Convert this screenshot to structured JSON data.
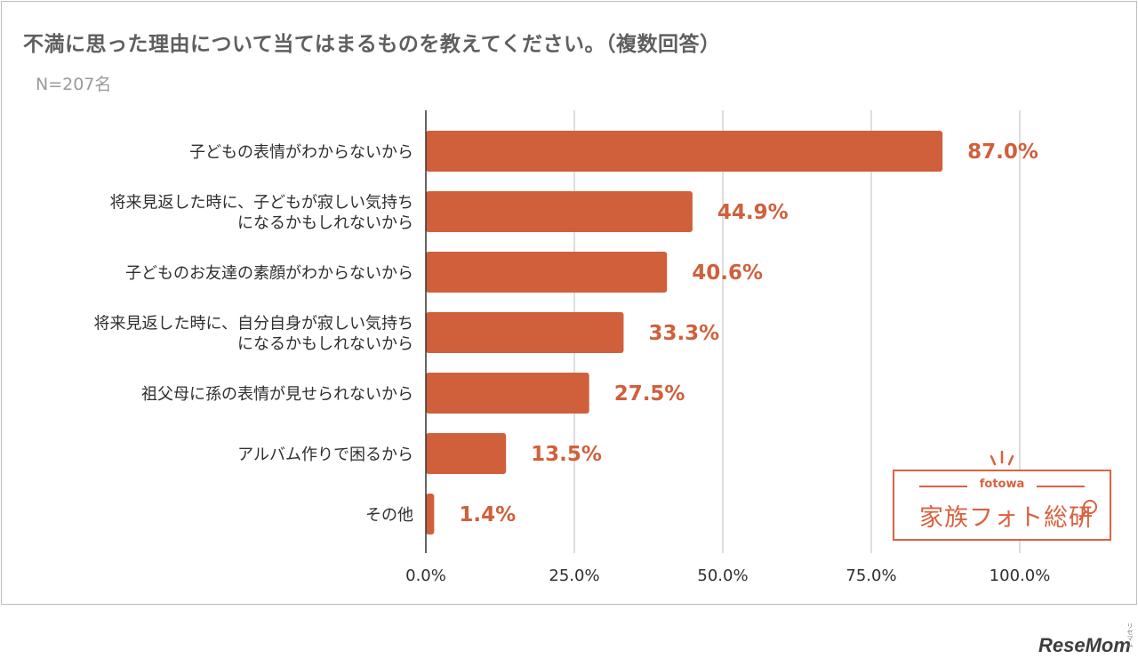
{
  "header": {
    "title": "不満に思った理由について当てはまるものを教えてください。（複数回答）",
    "sample_size": "N=207名"
  },
  "chart_data": {
    "type": "bar",
    "orientation": "horizontal",
    "categories": [
      "子どもの表情がわからないから",
      "将来見返した時に、子どもが寂しい気持ちになるかもしれないから",
      "子どものお友達の素顔がわからないから",
      "将来見返した時に、自分自身が寂しい気持ちになるかもしれないから",
      "祖父母に孫の表情が見せられないから",
      "アルバム作りで困るから",
      "その他"
    ],
    "category_lines": [
      [
        "子どもの表情がわからないから"
      ],
      [
        "将来見返した時に、子どもが寂しい気持ち",
        "になるかもしれないから"
      ],
      [
        "子どものお友達の素顔がわからないから"
      ],
      [
        "将来見返した時に、自分自身が寂しい気持ち",
        "になるかもしれないから"
      ],
      [
        "祖父母に孫の表情が見せられないから"
      ],
      [
        "アルバム作りで困るから"
      ],
      [
        "その他"
      ]
    ],
    "values": [
      87.0,
      44.9,
      40.6,
      33.3,
      27.5,
      13.5,
      1.4
    ],
    "value_labels": [
      "87.0%",
      "44.9%",
      "40.6%",
      "33.3%",
      "27.5%",
      "13.5%",
      "1.4%"
    ],
    "xlim": [
      0,
      100
    ],
    "x_ticks": [
      0,
      25,
      50,
      75,
      100
    ],
    "x_tick_labels": [
      "0.0%",
      "25.0%",
      "50.0%",
      "75.0%",
      "100.0%"
    ],
    "grid": true,
    "bar_color": "#d0603c",
    "label_color": "#d0603c"
  },
  "logo": {
    "sub": "fotowa",
    "main": "家族フォト総研"
  },
  "watermark": {
    "text": "ReseMom",
    "reading": "リセマム"
  }
}
